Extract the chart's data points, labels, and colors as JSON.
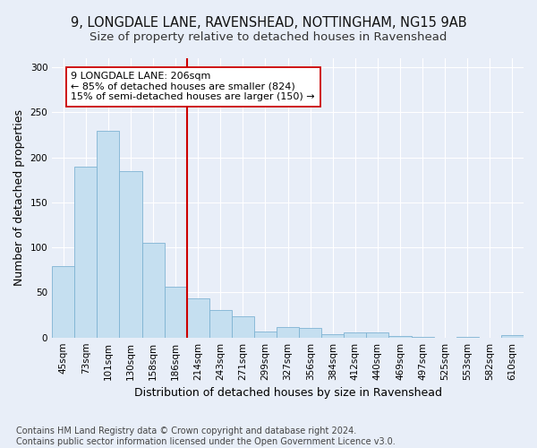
{
  "title_line1": "9, LONGDALE LANE, RAVENSHEAD, NOTTINGHAM, NG15 9AB",
  "title_line2": "Size of property relative to detached houses in Ravenshead",
  "xlabel": "Distribution of detached houses by size in Ravenshead",
  "ylabel": "Number of detached properties",
  "categories": [
    "45sqm",
    "73sqm",
    "101sqm",
    "130sqm",
    "158sqm",
    "186sqm",
    "214sqm",
    "243sqm",
    "271sqm",
    "299sqm",
    "327sqm",
    "356sqm",
    "384sqm",
    "412sqm",
    "440sqm",
    "469sqm",
    "497sqm",
    "525sqm",
    "553sqm",
    "582sqm",
    "610sqm"
  ],
  "values": [
    79,
    190,
    229,
    185,
    105,
    56,
    43,
    31,
    24,
    7,
    12,
    11,
    4,
    6,
    6,
    2,
    1,
    0,
    1,
    0,
    3
  ],
  "bar_color": "#c5dff0",
  "bar_edge_color": "#7fb3d3",
  "vline_color": "#cc0000",
  "annotation_text": "9 LONGDALE LANE: 206sqm\n← 85% of detached houses are smaller (824)\n15% of semi-detached houses are larger (150) →",
  "annotation_box_color": "#ffffff",
  "annotation_box_edge": "#cc0000",
  "ylim": [
    0,
    310
  ],
  "yticks": [
    0,
    50,
    100,
    150,
    200,
    250,
    300
  ],
  "footnote": "Contains HM Land Registry data © Crown copyright and database right 2024.\nContains public sector information licensed under the Open Government Licence v3.0.",
  "bg_color": "#e8eef8",
  "title_fontsize": 10.5,
  "subtitle_fontsize": 9.5,
  "axis_label_fontsize": 9,
  "tick_fontsize": 7.5,
  "annotation_fontsize": 8,
  "footnote_fontsize": 7
}
